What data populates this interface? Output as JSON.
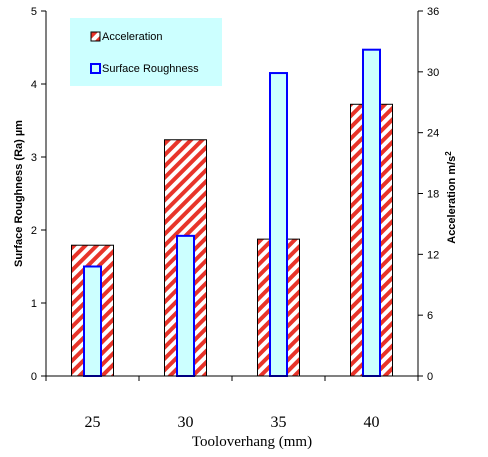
{
  "chart_data": {
    "type": "bar",
    "categories": [
      "25",
      "30",
      "35",
      "40"
    ],
    "series": [
      {
        "name": "Acceleration",
        "axis": "right",
        "values": [
          12.9,
          23.3,
          13.5,
          26.8
        ],
        "fill": "#ffffff",
        "hatch_color": "#e8342a",
        "stroke": "#000000"
      },
      {
        "name": "Surface Roughness",
        "axis": "left",
        "values": [
          1.5,
          1.92,
          4.15,
          4.47
        ],
        "fill": "#ccffff",
        "stroke": "#0000ff"
      }
    ],
    "xlabel": "Tooloverhang (mm)",
    "ylabel_left": "Surface Roughness (Ra) µm",
    "ylabel_right_base": "Acceleration m/s",
    "ylabel_right_sup": "2",
    "ylim_left": [
      0,
      5
    ],
    "yticks_left": [
      0,
      1,
      2,
      3,
      4,
      5
    ],
    "ylim_right": [
      0,
      36
    ],
    "yticks_right": [
      0,
      6,
      12,
      18,
      24,
      30,
      36
    ],
    "grid": false,
    "legend": {
      "placement": "top-left",
      "background": "#ccffff"
    }
  }
}
